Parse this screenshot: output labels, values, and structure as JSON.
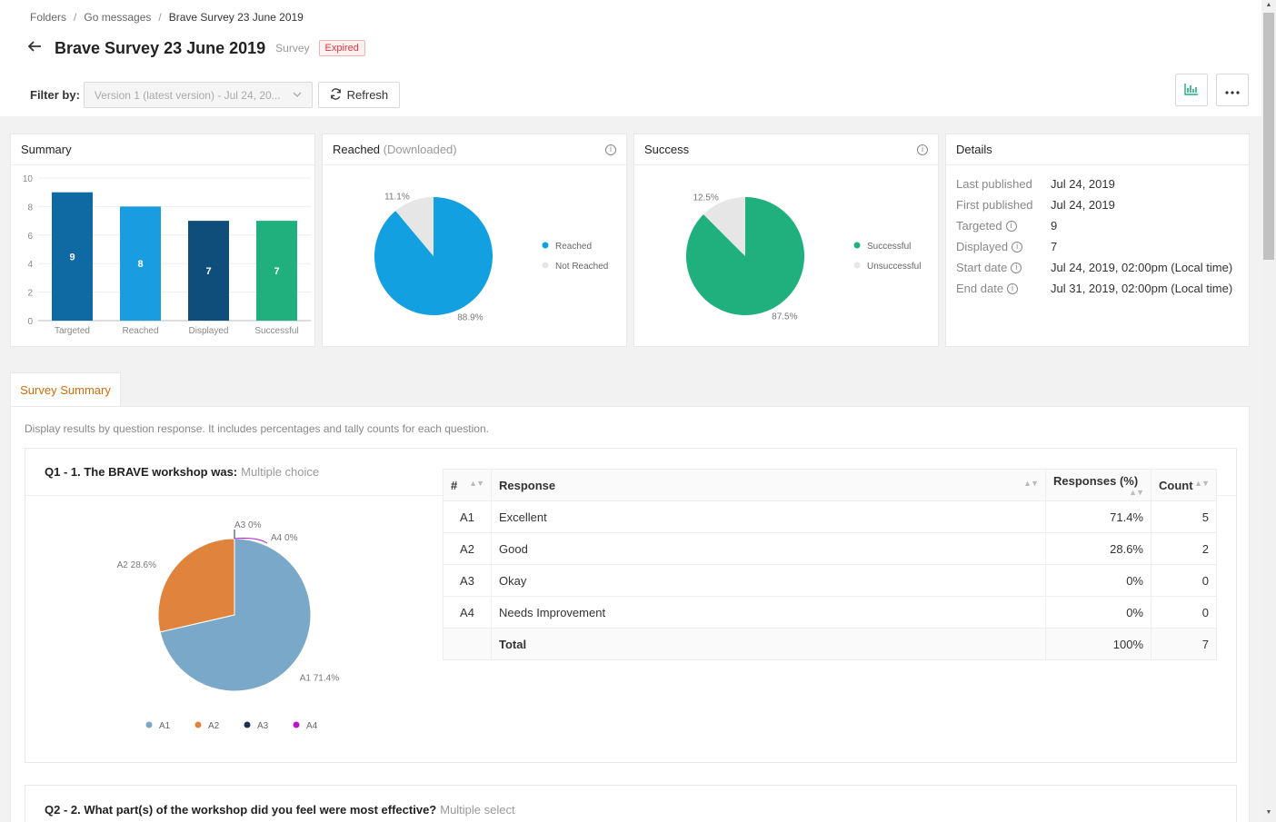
{
  "breadcrumb": {
    "items": [
      "Folders",
      "Go messages"
    ],
    "current": "Brave Survey 23 June 2019"
  },
  "header": {
    "title": "Brave Survey 23 June 2019",
    "type": "Survey",
    "status": "Expired",
    "filter_label": "Filter by:",
    "filter_value": "Version 1 (latest version) - Jul 24, 20...",
    "refresh_label": "Refresh",
    "icons": [
      "back-arrow-icon",
      "refresh-icon",
      "bar-chart-icon",
      "more-icon"
    ]
  },
  "summary": {
    "title": "Summary",
    "chart_data": {
      "type": "bar",
      "categories": [
        "Targeted",
        "Reached",
        "Displayed",
        "Successful"
      ],
      "values": [
        9,
        8,
        7,
        7
      ],
      "ylim": [
        0,
        10
      ],
      "yticks": [
        0,
        2,
        4,
        6,
        8,
        10
      ],
      "colors": [
        "#0f6aa3",
        "#1a9ce0",
        "#0f4e7a",
        "#1fb07d"
      ]
    }
  },
  "reached": {
    "title": "Reached",
    "subtitle": "(Downloaded)",
    "chart_data": {
      "type": "pie",
      "labels": [
        "Reached",
        "Not Reached"
      ],
      "values": [
        88.9,
        11.1
      ],
      "value_labels": [
        "88.9%",
        "11.1%"
      ],
      "colors": [
        "#13a0e0",
        "#e6e6e6"
      ]
    }
  },
  "success": {
    "title": "Success",
    "chart_data": {
      "type": "pie",
      "labels": [
        "Successful",
        "Unsuccessful"
      ],
      "values": [
        87.5,
        12.5
      ],
      "value_labels": [
        "87.5%",
        "12.5%"
      ],
      "colors": [
        "#1fb07d",
        "#e6e6e6"
      ]
    }
  },
  "details": {
    "title": "Details",
    "rows": [
      {
        "key": "Last published",
        "value": "Jul 24, 2019",
        "info": false
      },
      {
        "key": "First published",
        "value": "Jul 24, 2019",
        "info": false
      },
      {
        "key": "Targeted",
        "value": "9",
        "info": true
      },
      {
        "key": "Displayed",
        "value": "7",
        "info": true
      },
      {
        "key": "Start date",
        "value": "Jul 24, 2019, 02:00pm (Local time)",
        "info": true
      },
      {
        "key": "End date",
        "value": "Jul 31, 2019, 02:00pm (Local time)",
        "info": true
      }
    ]
  },
  "survey_summary": {
    "tab_label": "Survey Summary",
    "description": "Display results by question response. It includes percentages and tally counts for each question.",
    "q1": {
      "title": "Q1 - 1. The BRAVE workshop was:",
      "type": "Multiple choice",
      "chart_data": {
        "type": "pie",
        "labels": [
          "A1",
          "A2",
          "A3",
          "A4"
        ],
        "values": [
          71.4,
          28.6,
          0,
          0
        ],
        "value_labels": [
          "A1 71.4%",
          "A2 28.6%",
          "A3 0%",
          "A4 0%"
        ],
        "colors": [
          "#7aa8c8",
          "#e0833c",
          "#1f2f55",
          "#b517c4"
        ]
      },
      "table": {
        "headers": [
          "#",
          "Response",
          "Responses (%)",
          "Count"
        ],
        "rows": [
          [
            "A1",
            "Excellent",
            "71.4%",
            "5"
          ],
          [
            "A2",
            "Good",
            "28.6%",
            "2"
          ],
          [
            "A3",
            "Okay",
            "0%",
            "0"
          ],
          [
            "A4",
            "Needs Improvement",
            "0%",
            "0"
          ]
        ],
        "total": [
          "",
          "Total",
          "100%",
          "7"
        ]
      }
    },
    "q2": {
      "title": "Q2 - 2. What part(s) of the workshop did you feel were most effective?",
      "type": "Multiple select"
    }
  }
}
